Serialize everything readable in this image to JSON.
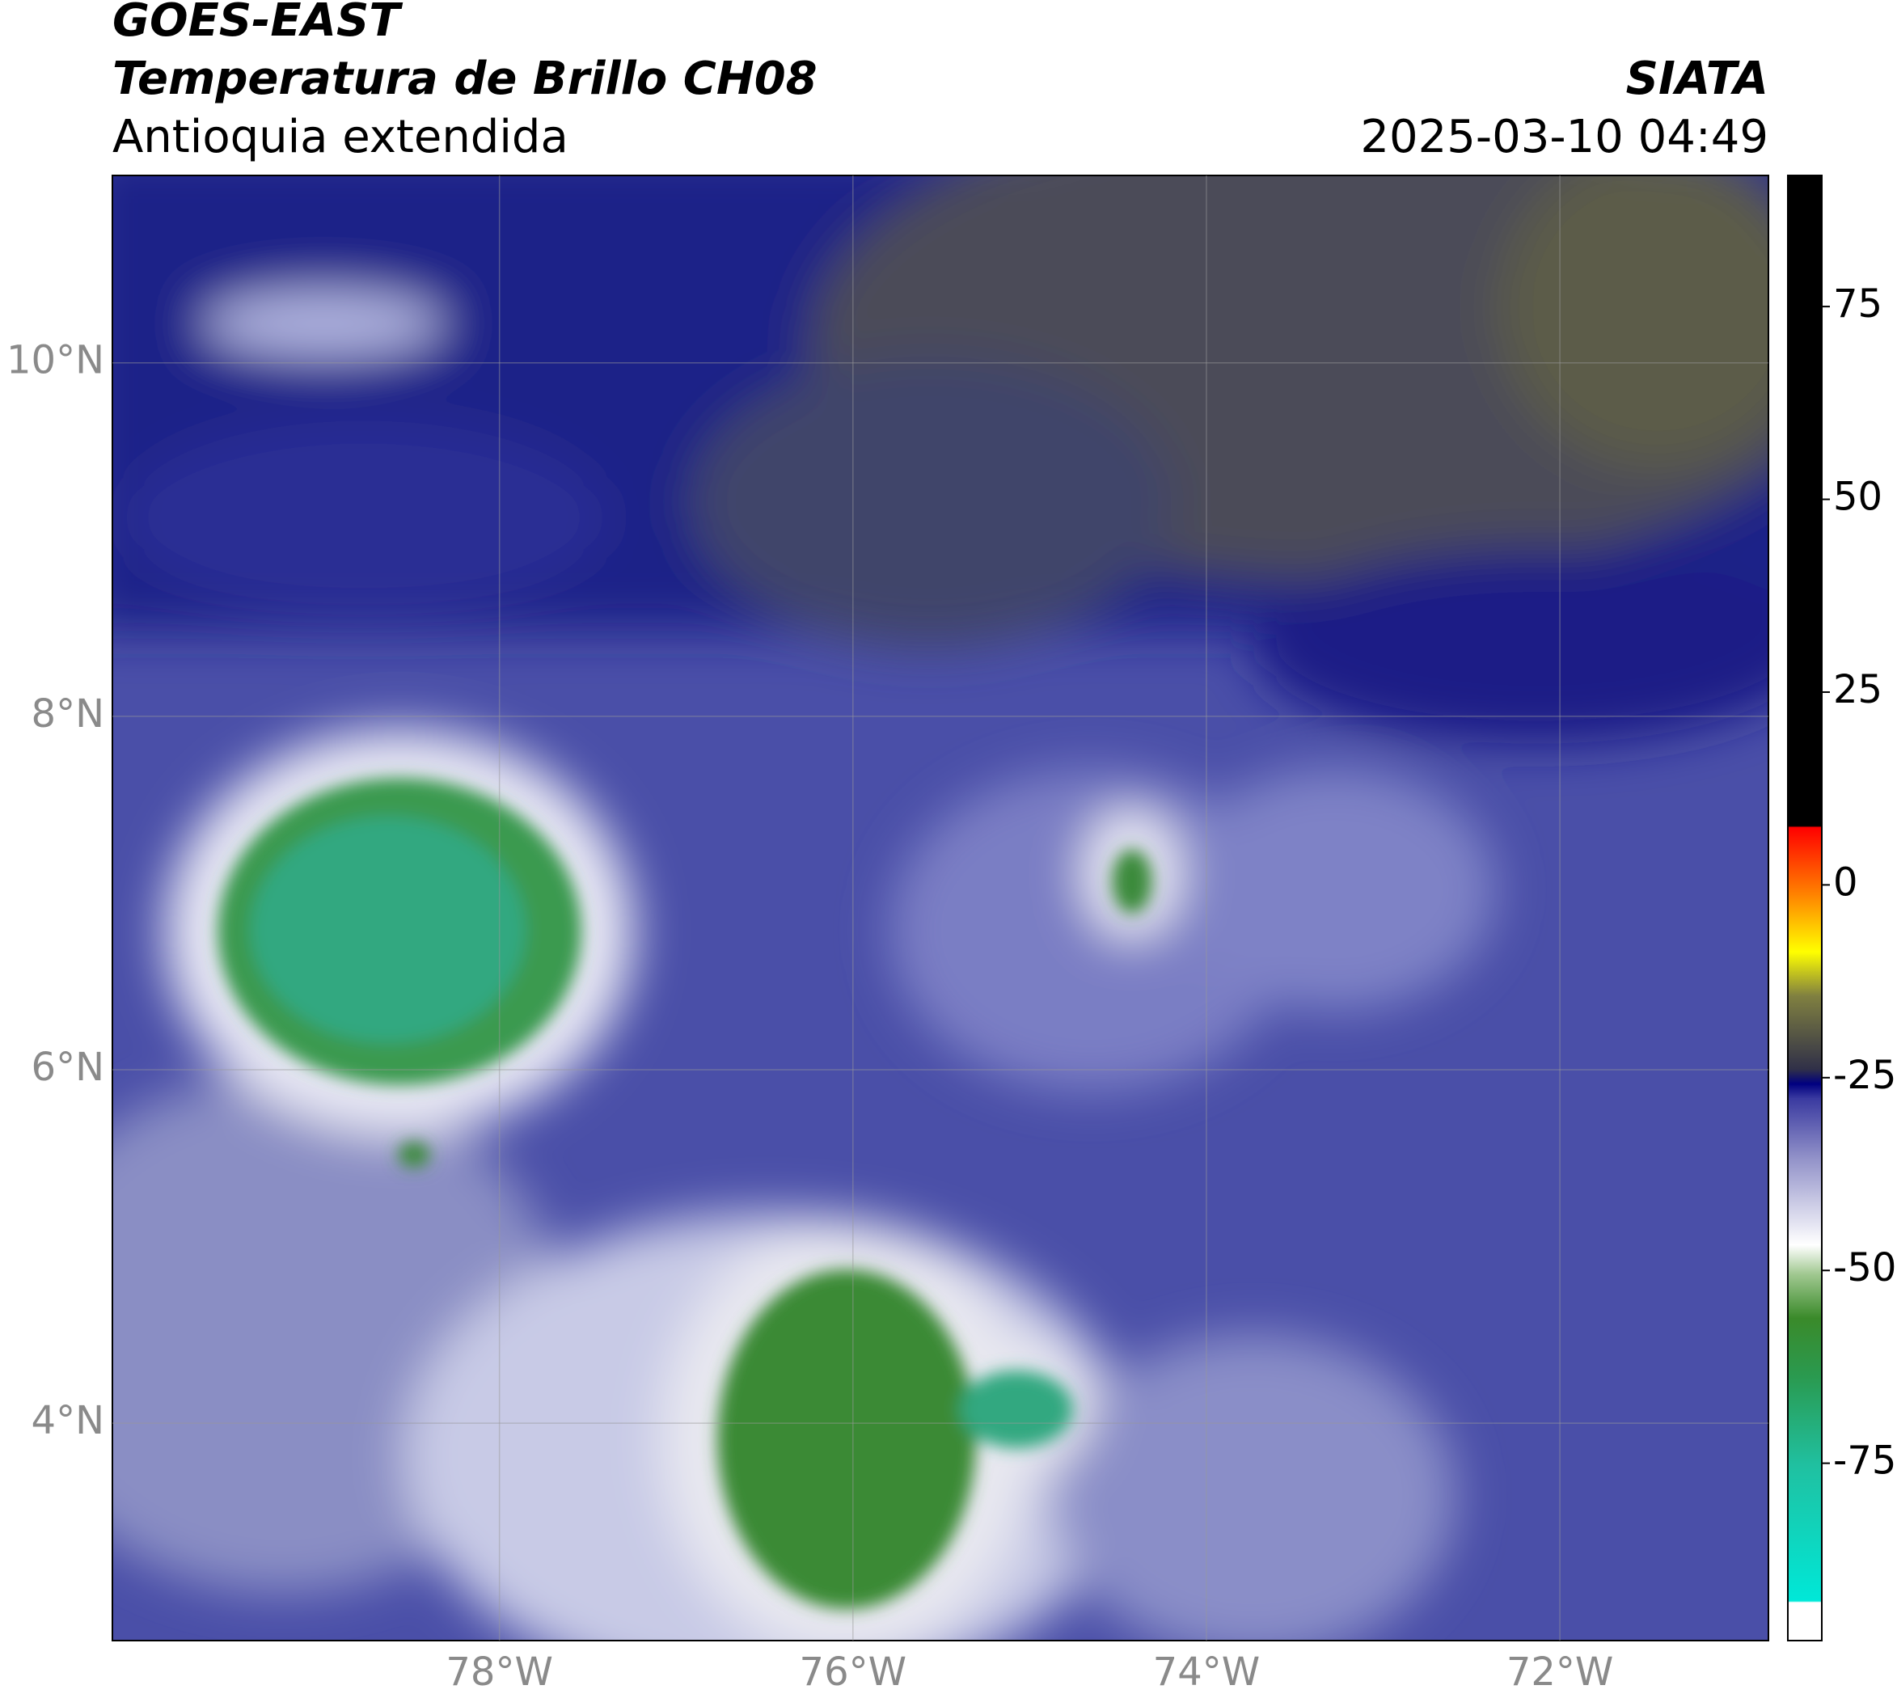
{
  "chart_data": {
    "type": "map",
    "title": "GOES-EAST",
    "subtitle": "Temperatura de Brillo CH08",
    "region": "Antioquia extendida",
    "source": "SIATA",
    "datetime": "2025-03-10 04:49",
    "xlim": [
      -80.19,
      -70.82
    ],
    "xticks": [
      {
        "value": -78,
        "label": "78°W"
      },
      {
        "value": -76,
        "label": "76°W"
      },
      {
        "value": -74,
        "label": "74°W"
      },
      {
        "value": -72,
        "label": "72°W"
      }
    ],
    "ylim": [
      2.77,
      11.06
    ],
    "yticks": [
      {
        "value": 4,
        "label": "4°N"
      },
      {
        "value": 6,
        "label": "6°N"
      },
      {
        "value": 8,
        "label": "8°N"
      },
      {
        "value": 10,
        "label": "10°N"
      }
    ],
    "grid": true,
    "colorbar": {
      "lim": [
        -98,
        92
      ],
      "ticks": [
        -75,
        -50,
        -25,
        0,
        25,
        50,
        75
      ]
    }
  }
}
